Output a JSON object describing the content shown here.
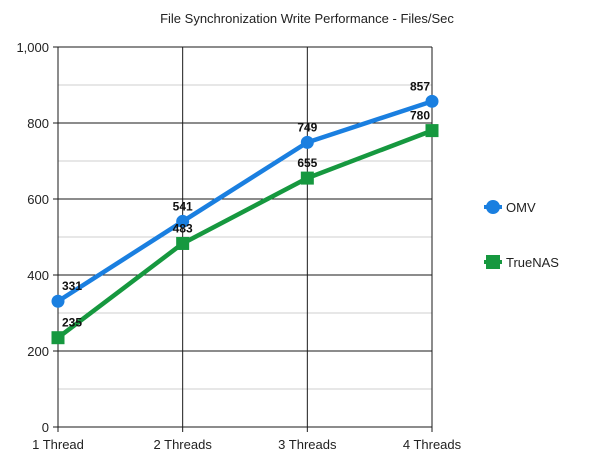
{
  "chart_data": {
    "type": "line",
    "title": "File Synchronization Write Performance - Files/Sec",
    "xlabel": "",
    "ylabel": "",
    "categories": [
      "1 Thread",
      "2 Threads",
      "3 Threads",
      "4 Threads"
    ],
    "ylim": [
      0,
      1000
    ],
    "yticks": [
      0,
      200,
      400,
      600,
      800,
      1000
    ],
    "ytick_labels": [
      "0",
      "200",
      "400",
      "600",
      "800",
      "1,000"
    ],
    "grid": true,
    "legend_position": "right",
    "series": [
      {
        "name": "OMV",
        "values": [
          331,
          541,
          749,
          857
        ],
        "labels": [
          "331",
          "541",
          "749",
          "857"
        ],
        "color": "#1a7fe0",
        "marker": "circle"
      },
      {
        "name": "TrueNAS",
        "values": [
          235,
          483,
          655,
          780
        ],
        "labels": [
          "235",
          "483",
          "655",
          "780"
        ],
        "color": "#16983f",
        "marker": "square"
      }
    ]
  }
}
